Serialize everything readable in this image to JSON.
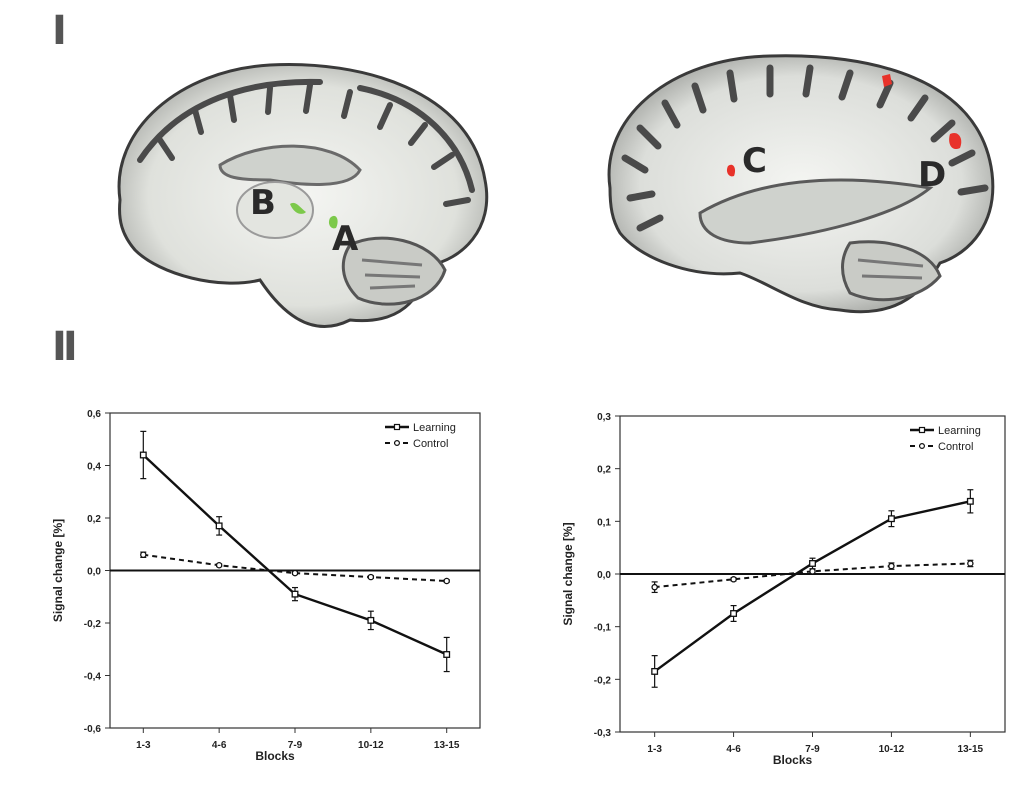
{
  "panels": {
    "top_label": "I",
    "bottom_label": "II"
  },
  "brain_images": [
    {
      "regions": [
        {
          "letter": "B",
          "color": "#7cc94a"
        },
        {
          "letter": "A",
          "color": "#7cc94a"
        }
      ]
    },
    {
      "regions": [
        {
          "letter": "C",
          "color": "#e8322a"
        },
        {
          "letter": "D",
          "color": "#e8322a"
        }
      ]
    }
  ],
  "chart_data": [
    {
      "type": "line",
      "categories": [
        "1-3",
        "4-6",
        "7-9",
        "10-12",
        "13-15"
      ],
      "xlabel": "Blocks",
      "ylabel": "Signal change [%]",
      "ylim": [
        -0.6,
        0.6
      ],
      "yticks": [
        "-0,6",
        "-0,4",
        "-0,2",
        "0,0",
        "0,2",
        "0,4",
        "0,6"
      ],
      "legend": "top-right",
      "series": [
        {
          "name": "Learning",
          "style": "solid",
          "values": [
            0.44,
            0.17,
            -0.09,
            -0.19,
            -0.32
          ],
          "errors": [
            0.09,
            0.035,
            0.025,
            0.035,
            0.065
          ]
        },
        {
          "name": "Control",
          "style": "dashed",
          "values": [
            0.06,
            0.02,
            -0.01,
            -0.025,
            -0.04
          ],
          "errors": [
            0.01,
            0.005,
            0.005,
            0.005,
            0.005
          ]
        }
      ]
    },
    {
      "type": "line",
      "categories": [
        "1-3",
        "4-6",
        "7-9",
        "10-12",
        "13-15"
      ],
      "xlabel": "Blocks",
      "ylabel": "Signal change [%]",
      "ylim": [
        -0.3,
        0.3
      ],
      "yticks": [
        "-0,3",
        "-0,2",
        "-0,1",
        "0,0",
        "0,1",
        "0,2",
        "0,3"
      ],
      "legend": "top-right",
      "series": [
        {
          "name": "Learning",
          "style": "solid",
          "values": [
            -0.185,
            -0.075,
            0.02,
            0.105,
            0.138
          ],
          "errors": [
            0.03,
            0.015,
            0.01,
            0.015,
            0.022
          ]
        },
        {
          "name": "Control",
          "style": "dashed",
          "values": [
            -0.025,
            -0.01,
            0.005,
            0.015,
            0.02
          ],
          "errors": [
            0.01,
            0.003,
            0.003,
            0.006,
            0.006
          ]
        }
      ]
    }
  ]
}
